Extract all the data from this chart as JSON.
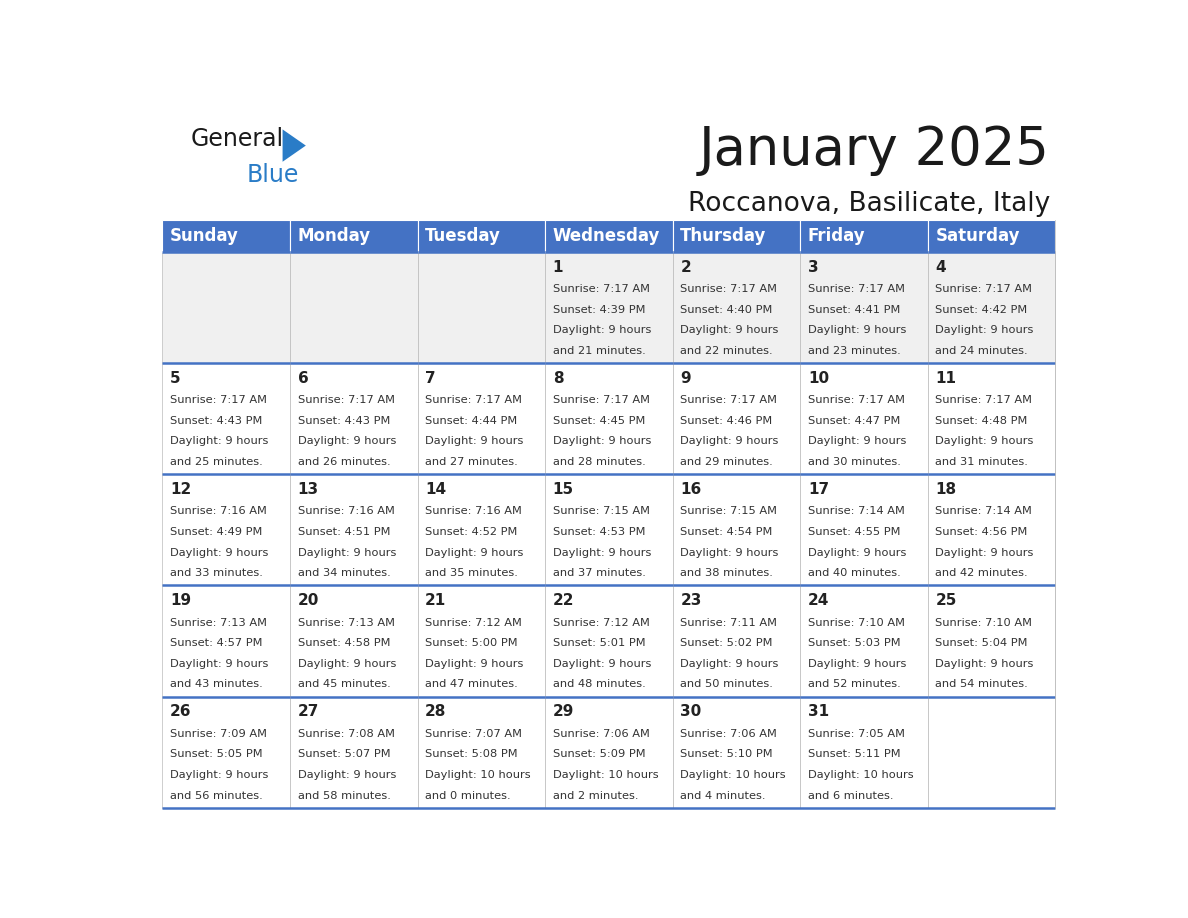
{
  "title": "January 2025",
  "subtitle": "Roccanova, Basilicate, Italy",
  "days_of_week": [
    "Sunday",
    "Monday",
    "Tuesday",
    "Wednesday",
    "Thursday",
    "Friday",
    "Saturday"
  ],
  "header_bg": "#4472C4",
  "header_text": "#FFFFFF",
  "cell_bg_light": "#F0F0F0",
  "cell_bg_white": "#FFFFFF",
  "cell_border": "#4472C4",
  "title_color": "#1a1a1a",
  "subtitle_color": "#1a1a1a",
  "day_num_color": "#222222",
  "cell_text_color": "#333333",
  "logo_general_color": "#1a1a1a",
  "logo_blue_color": "#2a7cc7",
  "calendar_data": [
    [
      {
        "day": "",
        "sunrise": "",
        "sunset": "",
        "daylight_h": "",
        "daylight_m": ""
      },
      {
        "day": "",
        "sunrise": "",
        "sunset": "",
        "daylight_h": "",
        "daylight_m": ""
      },
      {
        "day": "",
        "sunrise": "",
        "sunset": "",
        "daylight_h": "",
        "daylight_m": ""
      },
      {
        "day": "1",
        "sunrise": "7:17 AM",
        "sunset": "4:39 PM",
        "daylight_h": "9 hours",
        "daylight_m": "and 21 minutes."
      },
      {
        "day": "2",
        "sunrise": "7:17 AM",
        "sunset": "4:40 PM",
        "daylight_h": "9 hours",
        "daylight_m": "and 22 minutes."
      },
      {
        "day": "3",
        "sunrise": "7:17 AM",
        "sunset": "4:41 PM",
        "daylight_h": "9 hours",
        "daylight_m": "and 23 minutes."
      },
      {
        "day": "4",
        "sunrise": "7:17 AM",
        "sunset": "4:42 PM",
        "daylight_h": "9 hours",
        "daylight_m": "and 24 minutes."
      }
    ],
    [
      {
        "day": "5",
        "sunrise": "7:17 AM",
        "sunset": "4:43 PM",
        "daylight_h": "9 hours",
        "daylight_m": "and 25 minutes."
      },
      {
        "day": "6",
        "sunrise": "7:17 AM",
        "sunset": "4:43 PM",
        "daylight_h": "9 hours",
        "daylight_m": "and 26 minutes."
      },
      {
        "day": "7",
        "sunrise": "7:17 AM",
        "sunset": "4:44 PM",
        "daylight_h": "9 hours",
        "daylight_m": "and 27 minutes."
      },
      {
        "day": "8",
        "sunrise": "7:17 AM",
        "sunset": "4:45 PM",
        "daylight_h": "9 hours",
        "daylight_m": "and 28 minutes."
      },
      {
        "day": "9",
        "sunrise": "7:17 AM",
        "sunset": "4:46 PM",
        "daylight_h": "9 hours",
        "daylight_m": "and 29 minutes."
      },
      {
        "day": "10",
        "sunrise": "7:17 AM",
        "sunset": "4:47 PM",
        "daylight_h": "9 hours",
        "daylight_m": "and 30 minutes."
      },
      {
        "day": "11",
        "sunrise": "7:17 AM",
        "sunset": "4:48 PM",
        "daylight_h": "9 hours",
        "daylight_m": "and 31 minutes."
      }
    ],
    [
      {
        "day": "12",
        "sunrise": "7:16 AM",
        "sunset": "4:49 PM",
        "daylight_h": "9 hours",
        "daylight_m": "and 33 minutes."
      },
      {
        "day": "13",
        "sunrise": "7:16 AM",
        "sunset": "4:51 PM",
        "daylight_h": "9 hours",
        "daylight_m": "and 34 minutes."
      },
      {
        "day": "14",
        "sunrise": "7:16 AM",
        "sunset": "4:52 PM",
        "daylight_h": "9 hours",
        "daylight_m": "and 35 minutes."
      },
      {
        "day": "15",
        "sunrise": "7:15 AM",
        "sunset": "4:53 PM",
        "daylight_h": "9 hours",
        "daylight_m": "and 37 minutes."
      },
      {
        "day": "16",
        "sunrise": "7:15 AM",
        "sunset": "4:54 PM",
        "daylight_h": "9 hours",
        "daylight_m": "and 38 minutes."
      },
      {
        "day": "17",
        "sunrise": "7:14 AM",
        "sunset": "4:55 PM",
        "daylight_h": "9 hours",
        "daylight_m": "and 40 minutes."
      },
      {
        "day": "18",
        "sunrise": "7:14 AM",
        "sunset": "4:56 PM",
        "daylight_h": "9 hours",
        "daylight_m": "and 42 minutes."
      }
    ],
    [
      {
        "day": "19",
        "sunrise": "7:13 AM",
        "sunset": "4:57 PM",
        "daylight_h": "9 hours",
        "daylight_m": "and 43 minutes."
      },
      {
        "day": "20",
        "sunrise": "7:13 AM",
        "sunset": "4:58 PM",
        "daylight_h": "9 hours",
        "daylight_m": "and 45 minutes."
      },
      {
        "day": "21",
        "sunrise": "7:12 AM",
        "sunset": "5:00 PM",
        "daylight_h": "9 hours",
        "daylight_m": "and 47 minutes."
      },
      {
        "day": "22",
        "sunrise": "7:12 AM",
        "sunset": "5:01 PM",
        "daylight_h": "9 hours",
        "daylight_m": "and 48 minutes."
      },
      {
        "day": "23",
        "sunrise": "7:11 AM",
        "sunset": "5:02 PM",
        "daylight_h": "9 hours",
        "daylight_m": "and 50 minutes."
      },
      {
        "day": "24",
        "sunrise": "7:10 AM",
        "sunset": "5:03 PM",
        "daylight_h": "9 hours",
        "daylight_m": "and 52 minutes."
      },
      {
        "day": "25",
        "sunrise": "7:10 AM",
        "sunset": "5:04 PM",
        "daylight_h": "9 hours",
        "daylight_m": "and 54 minutes."
      }
    ],
    [
      {
        "day": "26",
        "sunrise": "7:09 AM",
        "sunset": "5:05 PM",
        "daylight_h": "9 hours",
        "daylight_m": "and 56 minutes."
      },
      {
        "day": "27",
        "sunrise": "7:08 AM",
        "sunset": "5:07 PM",
        "daylight_h": "9 hours",
        "daylight_m": "and 58 minutes."
      },
      {
        "day": "28",
        "sunrise": "7:07 AM",
        "sunset": "5:08 PM",
        "daylight_h": "10 hours",
        "daylight_m": "and 0 minutes."
      },
      {
        "day": "29",
        "sunrise": "7:06 AM",
        "sunset": "5:09 PM",
        "daylight_h": "10 hours",
        "daylight_m": "and 2 minutes."
      },
      {
        "day": "30",
        "sunrise": "7:06 AM",
        "sunset": "5:10 PM",
        "daylight_h": "10 hours",
        "daylight_m": "and 4 minutes."
      },
      {
        "day": "31",
        "sunrise": "7:05 AM",
        "sunset": "5:11 PM",
        "daylight_h": "10 hours",
        "daylight_m": "and 6 minutes."
      },
      {
        "day": "",
        "sunrise": "",
        "sunset": "",
        "daylight_h": "",
        "daylight_m": ""
      }
    ]
  ]
}
